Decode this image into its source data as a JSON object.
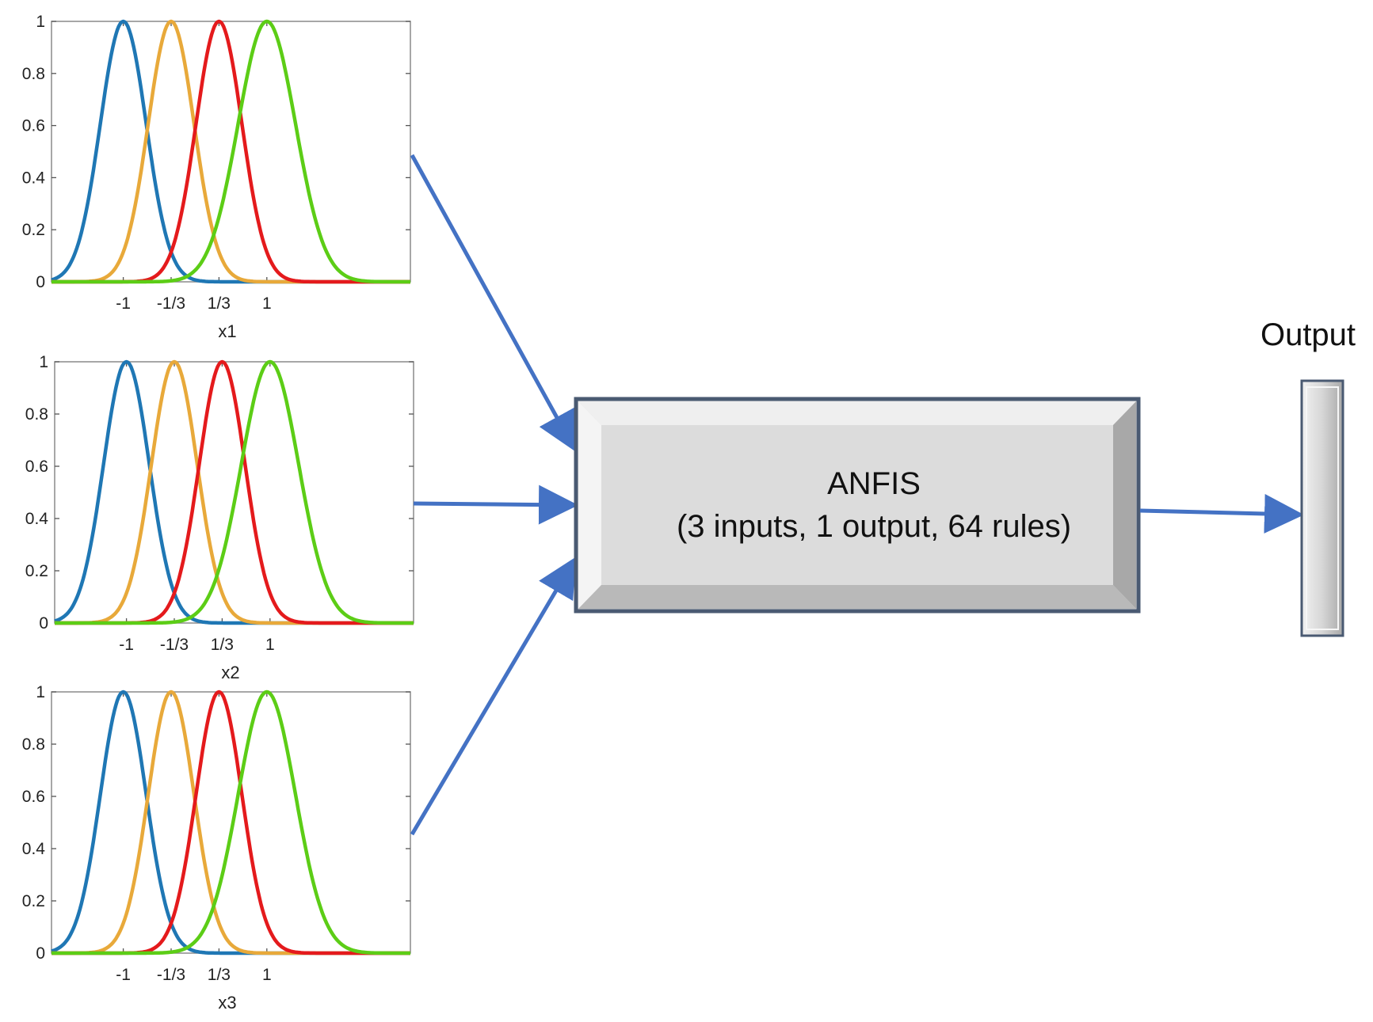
{
  "anfis": {
    "title": "ANFIS",
    "subtitle": "(3 inputs, 1 output, 64 rules)"
  },
  "output": {
    "label": "Output"
  },
  "colors": {
    "arrow": "#4472C4",
    "block_fill": "#dcdcdc",
    "block_border": "#4a5a72"
  },
  "chart_data": [
    {
      "type": "line",
      "title": "",
      "xlabel": "x1",
      "ylabel": "",
      "x_ticks": [
        -1,
        -0.3333,
        0.3333,
        1
      ],
      "x_tick_labels": [
        "-1",
        "-1/3",
        "1/3",
        "1"
      ],
      "y_ticks": [
        0,
        0.2,
        0.4,
        0.6,
        0.8,
        1
      ],
      "y_tick_labels": [
        "0",
        "0.2",
        "0.4",
        "0.6",
        "0.8",
        "1"
      ],
      "xlim": [
        -2,
        3
      ],
      "ylim": [
        0,
        1
      ],
      "grid": false,
      "series": [
        {
          "shape": "gaussian",
          "center": -1,
          "sigma": 0.32,
          "color": "#1f77b4"
        },
        {
          "shape": "gaussian",
          "center": -0.3333,
          "sigma": 0.32,
          "color": "#e8a93a"
        },
        {
          "shape": "gaussian",
          "center": 0.3333,
          "sigma": 0.32,
          "color": "#e41a1c"
        },
        {
          "shape": "gaussian",
          "center": 1,
          "sigma": 0.4,
          "color": "#5ccd16"
        }
      ]
    },
    {
      "type": "line",
      "title": "",
      "xlabel": "x2",
      "ylabel": "",
      "x_ticks": [
        -1,
        -0.3333,
        0.3333,
        1
      ],
      "x_tick_labels": [
        "-1",
        "-1/3",
        "1/3",
        "1"
      ],
      "y_ticks": [
        0,
        0.2,
        0.4,
        0.6,
        0.8,
        1
      ],
      "y_tick_labels": [
        "0",
        "0.2",
        "0.4",
        "0.6",
        "0.8",
        "1"
      ],
      "xlim": [
        -2,
        3
      ],
      "ylim": [
        0,
        1
      ],
      "grid": false,
      "series": [
        {
          "shape": "gaussian",
          "center": -1,
          "sigma": 0.32,
          "color": "#1f77b4"
        },
        {
          "shape": "gaussian",
          "center": -0.3333,
          "sigma": 0.32,
          "color": "#e8a93a"
        },
        {
          "shape": "gaussian",
          "center": 0.3333,
          "sigma": 0.32,
          "color": "#e41a1c"
        },
        {
          "shape": "gaussian",
          "center": 1,
          "sigma": 0.4,
          "color": "#5ccd16"
        }
      ]
    },
    {
      "type": "line",
      "title": "",
      "xlabel": "x3",
      "ylabel": "",
      "x_ticks": [
        -1,
        -0.3333,
        0.3333,
        1
      ],
      "x_tick_labels": [
        "-1",
        "-1/3",
        "1/3",
        "1"
      ],
      "y_ticks": [
        0,
        0.2,
        0.4,
        0.6,
        0.8,
        1
      ],
      "y_tick_labels": [
        "0",
        "0.2",
        "0.4",
        "0.6",
        "0.8",
        "1"
      ],
      "xlim": [
        -2,
        3
      ],
      "ylim": [
        0,
        1
      ],
      "grid": false,
      "series": [
        {
          "shape": "gaussian",
          "center": -1,
          "sigma": 0.32,
          "color": "#1f77b4"
        },
        {
          "shape": "gaussian",
          "center": -0.3333,
          "sigma": 0.32,
          "color": "#e8a93a"
        },
        {
          "shape": "gaussian",
          "center": 0.3333,
          "sigma": 0.32,
          "color": "#e41a1c"
        },
        {
          "shape": "gaussian",
          "center": 1,
          "sigma": 0.4,
          "color": "#5ccd16"
        }
      ]
    }
  ]
}
